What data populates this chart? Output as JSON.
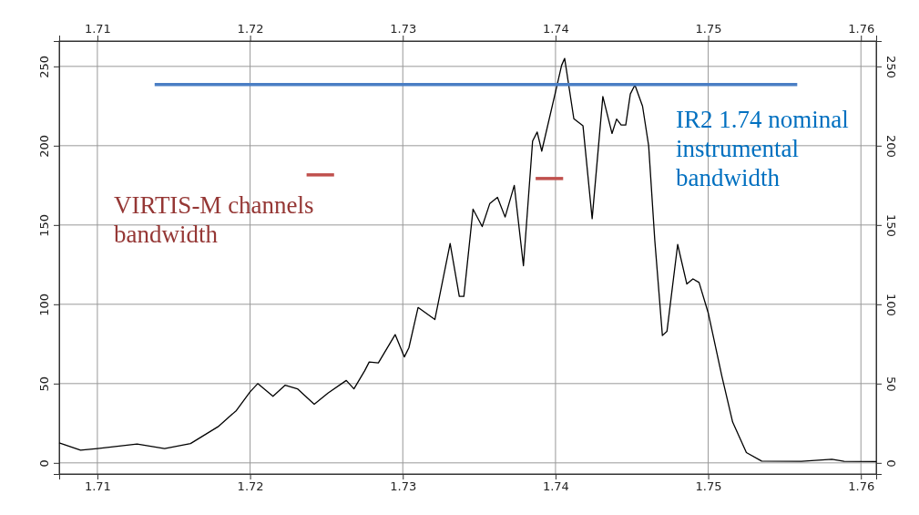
{
  "chart_data": {
    "type": "line",
    "xlim": [
      1.7075,
      1.761
    ],
    "xticks": [
      1.71,
      1.72,
      1.73,
      1.74,
      1.75,
      1.76
    ],
    "x2lim": [
      1.7075,
      1.761
    ],
    "x2ticks": [
      1.71,
      1.72,
      1.73,
      1.74,
      1.75,
      1.76
    ],
    "ylim": [
      -7,
      266
    ],
    "yticks": [
      0,
      50,
      100,
      150,
      200,
      250
    ],
    "y2lim": [
      -7,
      266
    ],
    "y2ticks": [
      0,
      50,
      100,
      150,
      200,
      250
    ],
    "grid": true,
    "marker": "none",
    "line_style": "solid",
    "series": [
      {
        "color": "#000000",
        "x": [
          1.7075,
          1.7089,
          1.71,
          1.7126,
          1.7144,
          1.7161,
          1.7179,
          1.7191,
          1.72,
          1.7205,
          1.7215,
          1.7223,
          1.7231,
          1.7242,
          1.7251,
          1.7263,
          1.7268,
          1.7275,
          1.7278,
          1.7284,
          1.7295,
          1.7301,
          1.7304,
          1.731,
          1.7321,
          1.7331,
          1.7337,
          1.734,
          1.7346,
          1.7352,
          1.7357,
          1.7362,
          1.7367,
          1.7373,
          1.7379,
          1.7385,
          1.7388,
          1.7391,
          1.7401,
          1.7404,
          1.7406,
          1.7412,
          1.7418,
          1.7424,
          1.7431,
          1.7437,
          1.744,
          1.7443,
          1.7446,
          1.7449,
          1.7452,
          1.7457,
          1.7461,
          1.7465,
          1.747,
          1.7473,
          1.748,
          1.7486,
          1.749,
          1.7494,
          1.75,
          1.7509,
          1.7516,
          1.7525,
          1.7535,
          1.7561,
          1.7581,
          1.7589,
          1.761
        ],
        "values": [
          12.6,
          8,
          9,
          11.9,
          9,
          12.2,
          22.8,
          33,
          44.8,
          50,
          42,
          49,
          46.7,
          37,
          44,
          52,
          46.7,
          58,
          63.6,
          63,
          80.9,
          66.8,
          72.6,
          98,
          90.4,
          138.3,
          105,
          105,
          160,
          149,
          163.6,
          167.4,
          155,
          175,
          124.3,
          202.9,
          208.6,
          196.6,
          238,
          250.7,
          255,
          217,
          212.5,
          154,
          231,
          207.7,
          216.8,
          213,
          213,
          232.6,
          238.3,
          224.9,
          200,
          140.6,
          80.3,
          83,
          137.7,
          112.8,
          116,
          113.8,
          94.6,
          54.4,
          25.7,
          6.5,
          1.1,
          1,
          2.3,
          1,
          0.8
        ]
      },
      {
        "color": "#4a7ec4",
        "x": [
          1.71375,
          1.75583
        ],
        "values": [
          238.5,
          238.5
        ]
      },
      {
        "color": "#c0504d",
        "x": [
          1.7237,
          1.7255
        ],
        "values": [
          181.6,
          181.6
        ]
      },
      {
        "color": "#c0504d",
        "x": [
          1.7387,
          1.7405
        ],
        "values": [
          179.3,
          179.3
        ]
      }
    ],
    "annotations": [
      "VIRTIS-M channels bandwidth",
      "IR2 1.74 nominal instrumental bandwidth"
    ]
  }
}
